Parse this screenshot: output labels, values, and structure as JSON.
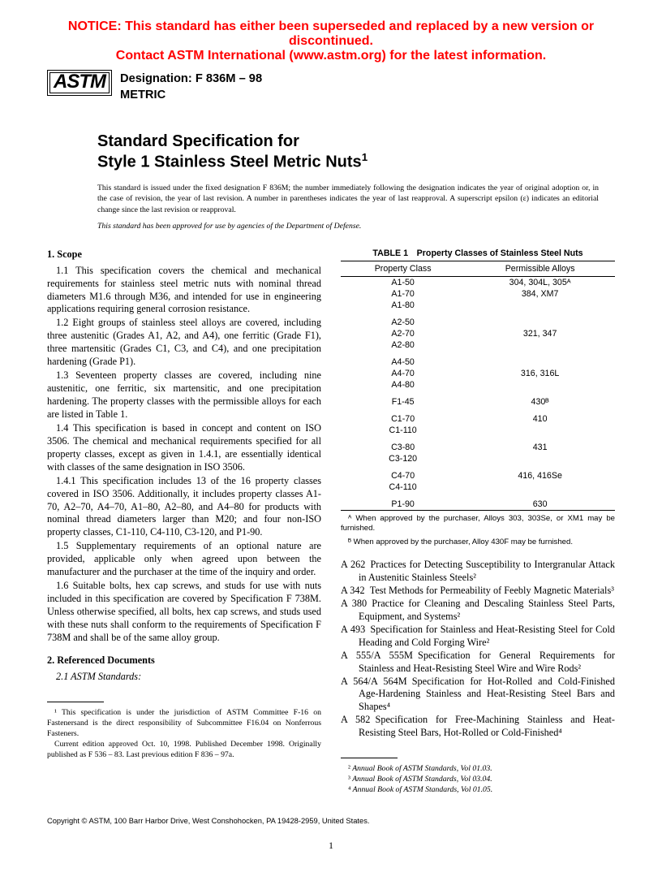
{
  "notice": {
    "color": "#ff0000",
    "line1": "NOTICE: This standard has either been superseded and replaced by a new version or discontinued.",
    "line2": "Contact ASTM International (www.astm.org) for the latest information."
  },
  "header": {
    "logo_text": "ASTM",
    "designation_label": "Designation: F 836M – 98",
    "metric": "METRIC"
  },
  "title": {
    "line1": "Standard Specification for",
    "line2": "Style 1 Stainless Steel Metric Nuts",
    "sup": "1"
  },
  "preamble": "This standard is issued under the fixed designation F 836M; the number immediately following the designation indicates the year of original adoption or, in the case of revision, the year of last revision. A number in parentheses indicates the year of last reapproval. A superscript epsilon (ε) indicates an editorial change since the last revision or reapproval.",
  "preamble_italic": "This standard has been approved for use by agencies of the Department of Defense.",
  "scope": {
    "heading": "1. Scope",
    "paras": [
      "1.1 This specification covers the chemical and mechanical requirements for stainless steel metric nuts with nominal thread diameters M1.6 through M36, and intended for use in engineering applications requiring general corrosion resistance.",
      "1.2 Eight groups of stainless steel alloys are covered, including three austenitic (Grades A1, A2, and A4), one ferritic (Grade F1), three martensitic (Grades C1, C3, and C4), and one precipitation hardening (Grade P1).",
      "1.3 Seventeen property classes are covered, including nine austenitic, one ferritic, six martensitic, and one precipitation hardening. The property classes with the permissible alloys for each are listed in Table 1.",
      "1.4 This specification is based in concept and content on ISO 3506. The chemical and mechanical requirements specified for all property classes, except as given in 1.4.1, are essentially identical with classes of the same designation in ISO 3506.",
      "1.4.1 This specification includes 13 of the 16 property classes covered in ISO 3506. Additionally, it includes property classes A1-70, A2–70, A4–70, A1–80, A2–80, and A4–80 for products with nominal thread diameters larger than M20; and four non-ISO property classes, C1-110, C4-110, C3-120, and P1-90.",
      "1.5 Supplementary requirements of an optional nature are provided, applicable only when agreed upon between the manufacturer and the purchaser at the time of the inquiry and order.",
      "1.6 Suitable bolts, hex cap screws, and studs for use with nuts included in this specification are covered by Specification F 738M. Unless otherwise specified, all bolts, hex cap screws, and studs used with these nuts shall conform to the requirements of Specification F 738M and shall be of the same alloy group."
    ]
  },
  "refdocs": {
    "heading": "2. Referenced Documents",
    "sub": "2.1 ASTM Standards:"
  },
  "footnote_left": {
    "p1": "¹ This specification is under the jurisdiction of ASTM Committee F-16 on Fastenersand is the direct responsibility of Subcommittee F16.04 on Nonferrous Fasteners.",
    "p2": "Current edition approved Oct. 10, 1998. Published December 1998. Originally published as F 536 – 83. Last previous edition F 836 – 97a."
  },
  "table1": {
    "title": "TABLE 1 Property Classes of Stainless Steel Nuts",
    "col1": "Property Class",
    "col2": "Permissible Alloys",
    "groups": [
      {
        "classes": [
          "A1-50",
          "A1-70",
          "A1-80"
        ],
        "alloys": [
          "304, 304L, 305ᴬ",
          "384, XM7",
          ""
        ]
      },
      {
        "classes": [
          "A2-50",
          "A2-70",
          "A2-80"
        ],
        "alloys": [
          "",
          "321, 347",
          ""
        ]
      },
      {
        "classes": [
          "A4-50",
          "A4-70",
          "A4-80"
        ],
        "alloys": [
          "",
          "316, 316L",
          ""
        ]
      },
      {
        "classes": [
          "F1-45"
        ],
        "alloys": [
          "430ᴮ"
        ]
      },
      {
        "classes": [
          "C1-70",
          "C1-110"
        ],
        "alloys": [
          "410",
          ""
        ]
      },
      {
        "classes": [
          "C3-80",
          "C3-120"
        ],
        "alloys": [
          "431",
          ""
        ]
      },
      {
        "classes": [
          "C4-70",
          "C4-110"
        ],
        "alloys": [
          "416, 416Se",
          ""
        ]
      },
      {
        "classes": [
          "P1-90"
        ],
        "alloys": [
          "630"
        ]
      }
    ],
    "noteA": "ᴬ When approved by the purchaser, Alloys 303, 303Se, or XM1 may be furnished.",
    "noteB": "ᴮ When approved by the purchaser, Alloy 430F may be furnished."
  },
  "refs": [
    {
      "id": "A 262",
      "text": "Practices for Detecting Susceptibility to Intergranular Attack in Austenitic Stainless Steels",
      "sup": "2"
    },
    {
      "id": "A 342",
      "text": "Test Methods for Permeability of Feebly Magnetic Materials",
      "sup": "3"
    },
    {
      "id": "A 380",
      "text": "Practice for Cleaning and Descaling Stainless Steel Parts, Equipment, and Systems",
      "sup": "2"
    },
    {
      "id": "A 493",
      "text": "Specification for Stainless and Heat-Resisting Steel for Cold Heading and Cold Forging Wire",
      "sup": "2"
    },
    {
      "id": "A 555/A 555M",
      "text": "Specification for General Requirements for Stainless and Heat-Resisting Steel Wire and Wire Rods",
      "sup": "2"
    },
    {
      "id": "A 564/A 564M",
      "text": "Specification for Hot-Rolled and Cold-Finished Age-Hardening Stainless and Heat-Resisting Steel Bars and Shapes",
      "sup": "4"
    },
    {
      "id": "A 582",
      "text": "Specification for Free-Machining Stainless and Heat-Resisting Steel Bars, Hot-Rolled or Cold-Finished",
      "sup": "4"
    }
  ],
  "footnote_right": {
    "f2": "Annual Book of ASTM Standards, Vol 01.03.",
    "f3": "Annual Book of ASTM Standards, Vol 03.04.",
    "f4": "Annual Book of ASTM Standards, Vol 01.05."
  },
  "copyright": "Copyright © ASTM, 100 Barr Harbor Drive, West Conshohocken, PA 19428-2959, United States.",
  "pagenum": "1"
}
